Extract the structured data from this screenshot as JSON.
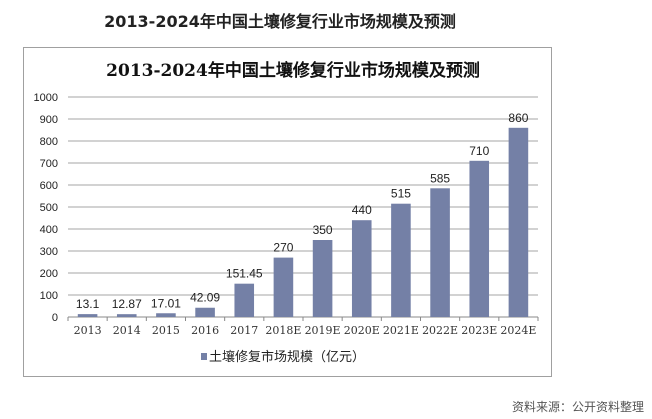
{
  "page_title": "2013-2024年中国土壤修复行业市场规模及预测",
  "source_note": "资料来源：公开资料整理",
  "chart_data": {
    "type": "bar",
    "title": "2013-2024年中国土壤修复行业市场规模及预测",
    "categories": [
      "2013",
      "2014",
      "2015",
      "2016",
      "2017",
      "2018E",
      "2019E",
      "2020E",
      "2021E",
      "2022E",
      "2023E",
      "2024E"
    ],
    "series": [
      {
        "name": "土壤修复市场规模（亿元）",
        "values": [
          13.1,
          12.87,
          17.01,
          42.09,
          151.45,
          270,
          350,
          440,
          515,
          585,
          710,
          860
        ]
      }
    ],
    "data_labels": [
      "13.1",
      "12.87",
      "17.01",
      "42.09",
      "151.45",
      "270",
      "350",
      "440",
      "515",
      "585",
      "710",
      "860"
    ],
    "yticks": [
      0,
      100,
      200,
      300,
      400,
      500,
      600,
      700,
      800,
      900,
      1000
    ],
    "ylim": [
      0,
      1000
    ],
    "xlabel": "",
    "ylabel": "",
    "grid": true,
    "legend_position": "bottom",
    "colors": {
      "bar": "#7480a6",
      "grid": "#a6a6a6"
    }
  }
}
